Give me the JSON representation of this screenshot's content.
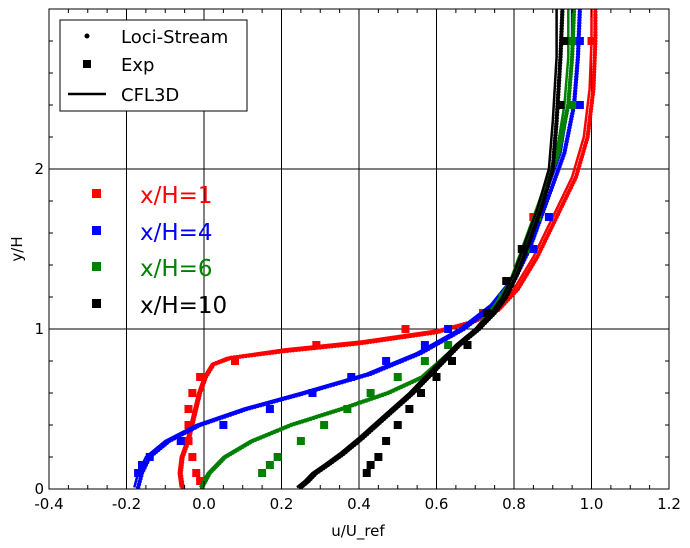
{
  "chart_data": {
    "type": "scatter",
    "xlabel": "u/U_ref",
    "ylabel": "y/H",
    "xlim": [
      -0.4,
      1.2
    ],
    "ylim": [
      0,
      3.0
    ],
    "x_ticks": [
      "-0.4",
      "-0.2",
      "0.0",
      "0.2",
      "0.4",
      "0.6",
      "0.8",
      "1.0",
      "1.2"
    ],
    "y_ticks": [
      "0",
      "1",
      "2"
    ],
    "x_tick_values": [
      -0.4,
      -0.2,
      0.0,
      0.2,
      0.4,
      0.6,
      0.8,
      1.0,
      1.2
    ],
    "y_tick_values": [
      0,
      1,
      2
    ],
    "grid": true,
    "legend": {
      "placement": "top-left",
      "entries": [
        {
          "label": "Loci-Stream",
          "marker": "dot"
        },
        {
          "label": "Exp",
          "marker": "square"
        },
        {
          "label": "CFL3D",
          "marker": "line"
        }
      ]
    },
    "annotations": [
      {
        "label": "x/H=1",
        "color": "#ff0000"
      },
      {
        "label": "x/H=4",
        "color": "#0000ff"
      },
      {
        "label": "x/H=6",
        "color": "#008000"
      },
      {
        "label": "x/H=10",
        "color": "#000000"
      }
    ],
    "series": [
      {
        "station": "x/H=1",
        "color": "#ff0000",
        "cfl3d": [
          [
            -0.06,
            0.01
          ],
          [
            -0.065,
            0.1
          ],
          [
            -0.06,
            0.2
          ],
          [
            -0.045,
            0.3
          ],
          [
            -0.03,
            0.45
          ],
          [
            -0.015,
            0.6
          ],
          [
            0.0,
            0.7
          ],
          [
            0.02,
            0.78
          ],
          [
            0.06,
            0.82
          ],
          [
            0.2,
            0.87
          ],
          [
            0.4,
            0.92
          ],
          [
            0.6,
            0.99
          ],
          [
            0.7,
            1.05
          ],
          [
            0.75,
            1.12
          ],
          [
            0.8,
            1.25
          ],
          [
            0.85,
            1.45
          ],
          [
            0.9,
            1.7
          ],
          [
            0.95,
            1.95
          ],
          [
            0.98,
            2.2
          ],
          [
            0.995,
            2.5
          ],
          [
            1.0,
            2.8
          ],
          [
            1.0,
            3.0
          ]
        ],
        "loci": [
          [
            -0.055,
            0.01
          ],
          [
            -0.06,
            0.1
          ],
          [
            -0.055,
            0.2
          ],
          [
            -0.04,
            0.3
          ],
          [
            -0.025,
            0.45
          ],
          [
            -0.01,
            0.6
          ],
          [
            0.005,
            0.7
          ],
          [
            0.025,
            0.78
          ],
          [
            0.07,
            0.82
          ],
          [
            0.2,
            0.86
          ],
          [
            0.4,
            0.91
          ],
          [
            0.6,
            0.98
          ],
          [
            0.7,
            1.05
          ],
          [
            0.76,
            1.12
          ],
          [
            0.81,
            1.25
          ],
          [
            0.86,
            1.45
          ],
          [
            0.91,
            1.7
          ],
          [
            0.96,
            1.95
          ],
          [
            0.99,
            2.2
          ],
          [
            1.005,
            2.5
          ],
          [
            1.01,
            2.8
          ],
          [
            1.01,
            3.0
          ]
        ],
        "exp": [
          [
            -0.01,
            0.05
          ],
          [
            -0.02,
            0.1
          ],
          [
            -0.03,
            0.2
          ],
          [
            -0.04,
            0.3
          ],
          [
            -0.04,
            0.4
          ],
          [
            -0.04,
            0.5
          ],
          [
            -0.03,
            0.6
          ],
          [
            -0.01,
            0.7
          ],
          [
            0.08,
            0.8
          ],
          [
            0.29,
            0.9
          ],
          [
            0.52,
            1.0
          ],
          [
            0.72,
            1.1
          ],
          [
            0.76,
            1.15
          ],
          [
            0.85,
            1.7
          ],
          [
            1.0,
            2.8
          ]
        ]
      },
      {
        "station": "x/H=4",
        "color": "#0000ff",
        "cfl3d": [
          [
            -0.18,
            0.01
          ],
          [
            -0.17,
            0.1
          ],
          [
            -0.15,
            0.2
          ],
          [
            -0.1,
            0.3
          ],
          [
            -0.02,
            0.4
          ],
          [
            0.1,
            0.5
          ],
          [
            0.25,
            0.6
          ],
          [
            0.42,
            0.72
          ],
          [
            0.55,
            0.85
          ],
          [
            0.66,
            1.0
          ],
          [
            0.74,
            1.15
          ],
          [
            0.79,
            1.3
          ],
          [
            0.83,
            1.5
          ],
          [
            0.86,
            1.7
          ],
          [
            0.89,
            1.9
          ],
          [
            0.92,
            2.1
          ],
          [
            0.94,
            2.4
          ],
          [
            0.95,
            2.7
          ],
          [
            0.95,
            3.0
          ]
        ],
        "loci": [
          [
            -0.17,
            0.01
          ],
          [
            -0.16,
            0.1
          ],
          [
            -0.14,
            0.2
          ],
          [
            -0.09,
            0.3
          ],
          [
            -0.01,
            0.4
          ],
          [
            0.11,
            0.5
          ],
          [
            0.26,
            0.6
          ],
          [
            0.43,
            0.72
          ],
          [
            0.56,
            0.85
          ],
          [
            0.67,
            1.0
          ],
          [
            0.75,
            1.15
          ],
          [
            0.8,
            1.3
          ],
          [
            0.84,
            1.5
          ],
          [
            0.87,
            1.7
          ],
          [
            0.9,
            1.9
          ],
          [
            0.93,
            2.1
          ],
          [
            0.955,
            2.4
          ],
          [
            0.965,
            2.7
          ],
          [
            0.97,
            3.0
          ]
        ],
        "exp": [
          [
            -0.17,
            0.1
          ],
          [
            -0.16,
            0.15
          ],
          [
            -0.14,
            0.2
          ],
          [
            -0.06,
            0.3
          ],
          [
            0.05,
            0.4
          ],
          [
            0.17,
            0.5
          ],
          [
            0.28,
            0.6
          ],
          [
            0.38,
            0.7
          ],
          [
            0.47,
            0.8
          ],
          [
            0.57,
            0.9
          ],
          [
            0.63,
            1.0
          ],
          [
            0.85,
            1.5
          ],
          [
            0.89,
            1.7
          ],
          [
            0.97,
            2.4
          ],
          [
            0.97,
            2.8
          ]
        ]
      },
      {
        "station": "x/H=6",
        "color": "#008000",
        "cfl3d": [
          [
            -0.01,
            0.01
          ],
          [
            0.01,
            0.1
          ],
          [
            0.05,
            0.2
          ],
          [
            0.12,
            0.3
          ],
          [
            0.22,
            0.4
          ],
          [
            0.35,
            0.5
          ],
          [
            0.47,
            0.6
          ],
          [
            0.56,
            0.7
          ],
          [
            0.63,
            0.85
          ],
          [
            0.7,
            1.0
          ],
          [
            0.75,
            1.15
          ],
          [
            0.79,
            1.3
          ],
          [
            0.82,
            1.5
          ],
          [
            0.85,
            1.7
          ],
          [
            0.88,
            1.9
          ],
          [
            0.91,
            2.1
          ],
          [
            0.93,
            2.4
          ],
          [
            0.94,
            2.7
          ],
          [
            0.94,
            3.0
          ]
        ],
        "loci": [
          [
            -0.005,
            0.01
          ],
          [
            0.015,
            0.1
          ],
          [
            0.055,
            0.2
          ],
          [
            0.125,
            0.3
          ],
          [
            0.225,
            0.4
          ],
          [
            0.355,
            0.5
          ],
          [
            0.475,
            0.6
          ],
          [
            0.565,
            0.7
          ],
          [
            0.635,
            0.85
          ],
          [
            0.705,
            1.0
          ],
          [
            0.755,
            1.15
          ],
          [
            0.795,
            1.3
          ],
          [
            0.825,
            1.5
          ],
          [
            0.855,
            1.7
          ],
          [
            0.885,
            1.9
          ],
          [
            0.915,
            2.1
          ],
          [
            0.94,
            2.4
          ],
          [
            0.95,
            2.7
          ],
          [
            0.955,
            3.0
          ]
        ],
        "exp": [
          [
            0.15,
            0.1
          ],
          [
            0.17,
            0.15
          ],
          [
            0.19,
            0.2
          ],
          [
            0.25,
            0.3
          ],
          [
            0.31,
            0.4
          ],
          [
            0.37,
            0.5
          ],
          [
            0.43,
            0.6
          ],
          [
            0.5,
            0.7
          ],
          [
            0.57,
            0.8
          ],
          [
            0.63,
            0.9
          ],
          [
            0.77,
            1.2
          ],
          [
            0.83,
            1.5
          ],
          [
            0.86,
            1.7
          ],
          [
            0.95,
            2.4
          ],
          [
            0.95,
            2.8
          ]
        ]
      },
      {
        "station": "x/H=10",
        "color": "#000000",
        "cfl3d": [
          [
            0.24,
            0.01
          ],
          [
            0.26,
            0.05
          ],
          [
            0.28,
            0.1
          ],
          [
            0.31,
            0.15
          ],
          [
            0.35,
            0.22
          ],
          [
            0.4,
            0.32
          ],
          [
            0.46,
            0.45
          ],
          [
            0.53,
            0.6
          ],
          [
            0.59,
            0.75
          ],
          [
            0.65,
            0.9
          ],
          [
            0.7,
            1.0
          ],
          [
            0.74,
            1.1
          ],
          [
            0.77,
            1.2
          ],
          [
            0.8,
            1.35
          ],
          [
            0.83,
            1.55
          ],
          [
            0.86,
            1.75
          ],
          [
            0.89,
            2.0
          ],
          [
            0.9,
            2.3
          ],
          [
            0.91,
            2.7
          ],
          [
            0.91,
            3.0
          ]
        ],
        "loci": [
          [
            0.25,
            0.01
          ],
          [
            0.27,
            0.05
          ],
          [
            0.29,
            0.1
          ],
          [
            0.32,
            0.15
          ],
          [
            0.36,
            0.22
          ],
          [
            0.41,
            0.32
          ],
          [
            0.47,
            0.45
          ],
          [
            0.54,
            0.6
          ],
          [
            0.6,
            0.75
          ],
          [
            0.66,
            0.9
          ],
          [
            0.71,
            1.0
          ],
          [
            0.75,
            1.1
          ],
          [
            0.78,
            1.2
          ],
          [
            0.81,
            1.35
          ],
          [
            0.84,
            1.55
          ],
          [
            0.87,
            1.75
          ],
          [
            0.9,
            2.0
          ],
          [
            0.91,
            2.3
          ],
          [
            0.92,
            2.7
          ],
          [
            0.925,
            3.0
          ]
        ],
        "exp": [
          [
            0.42,
            0.1
          ],
          [
            0.43,
            0.15
          ],
          [
            0.45,
            0.2
          ],
          [
            0.47,
            0.3
          ],
          [
            0.5,
            0.4
          ],
          [
            0.53,
            0.5
          ],
          [
            0.56,
            0.6
          ],
          [
            0.6,
            0.7
          ],
          [
            0.64,
            0.8
          ],
          [
            0.68,
            0.9
          ],
          [
            0.73,
            1.1
          ],
          [
            0.78,
            1.3
          ],
          [
            0.82,
            1.5
          ],
          [
            0.92,
            2.4
          ],
          [
            0.93,
            2.8
          ]
        ]
      }
    ]
  }
}
